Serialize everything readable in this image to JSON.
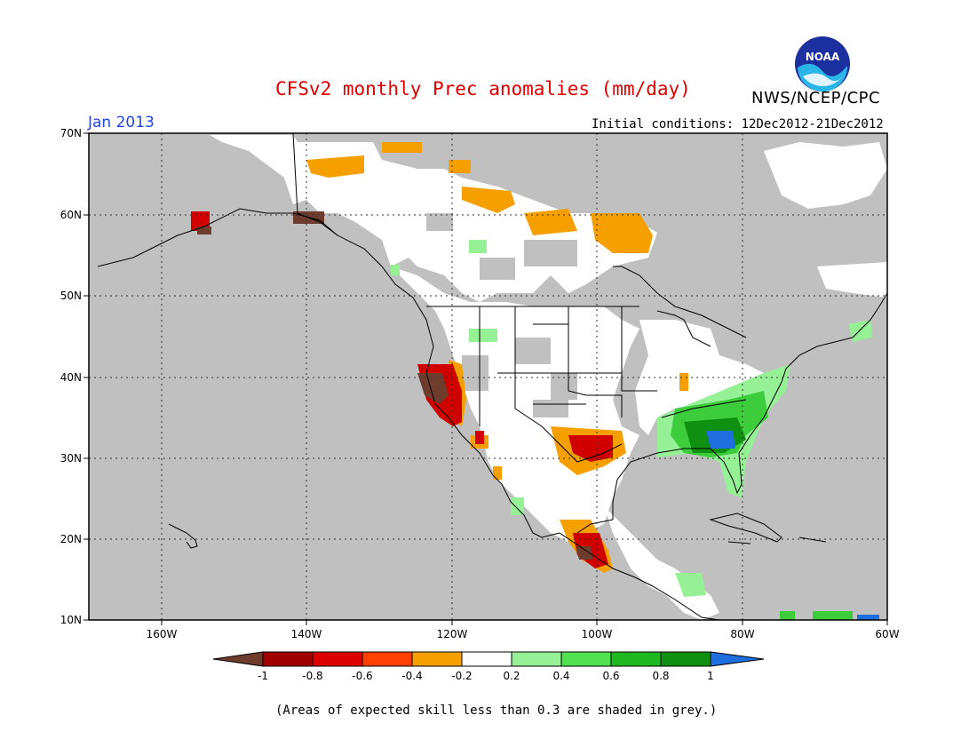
{
  "header": {
    "title": "CFSv2 monthly Prec anomalies (mm/day)",
    "agency": "NWS/NCEP/CPC",
    "valid_month": "Jan 2013",
    "initial_conditions": "Initial conditions: 12Dec2012-21Dec2012",
    "logo_text": "NOAA"
  },
  "map": {
    "lon_labels": [
      "160W",
      "140W",
      "120W",
      "100W",
      "80W",
      "60W"
    ],
    "lat_labels": [
      "70N",
      "60N",
      "50N",
      "40N",
      "30N",
      "20N",
      "10N"
    ],
    "colors": {
      "skill_grey": "#c0c0c0",
      "land_white": "#ffffff",
      "dry_orange": "#f5a000",
      "dry_red": "#c00000",
      "dry_brown": "#6e3c2c",
      "wet_lightgreen": "#96f096",
      "wet_green": "#3ccc3c",
      "wet_blue": "#1e6ee0"
    }
  },
  "legend": {
    "tick_labels": [
      "-1",
      "-0.8",
      "-0.6",
      "-0.4",
      "-0.2",
      "0.2",
      "0.4",
      "0.6",
      "0.8",
      "1"
    ],
    "colors": [
      "#6e3c2c",
      "#a00000",
      "#dc0000",
      "#ff4000",
      "#f5a000",
      "#ffffff",
      "#96f096",
      "#50e050",
      "#20b820",
      "#109010",
      "#1e6ee0"
    ]
  },
  "footnote": "(Areas of expected skill less than 0.3 are shaded in grey.)"
}
